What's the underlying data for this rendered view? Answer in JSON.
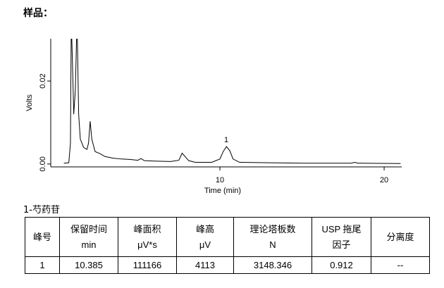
{
  "header": {
    "title": "样品："
  },
  "chart_data": {
    "type": "line",
    "x_label": "Time (min)",
    "y_label": "Volts",
    "xlim": [
      -0.3,
      21.07
    ],
    "ylim": [
      -0.0007,
      0.0302
    ],
    "xticks": [
      10,
      20
    ],
    "yticks": [
      {
        "value": 0,
        "label": "0.00"
      },
      {
        "value": 0.02,
        "label": "0.02"
      }
    ],
    "series": [
      {
        "color": "#000000",
        "x": [
          0.5,
          0.8,
          0.9,
          0.95,
          1.05,
          1.1,
          1.2,
          1.3,
          1.4,
          1.5,
          1.7,
          1.9,
          2.0,
          2.1,
          2.2,
          2.4,
          2.7,
          3.0,
          3.5,
          4.0,
          4.5,
          5.0,
          5.2,
          5.4,
          6.0,
          7.0,
          7.5,
          7.7,
          8.1,
          8.5,
          9.5,
          10.0,
          10.2,
          10.4,
          10.6,
          10.8,
          11.2,
          13,
          15,
          18,
          18.2,
          18.4,
          21
        ],
        "values": [
          0.0002,
          0.0003,
          0.005,
          0.035,
          0.02,
          0.012,
          0.018,
          0.035,
          0.012,
          0.006,
          0.004,
          0.0035,
          0.005,
          0.0103,
          0.006,
          0.003,
          0.0025,
          0.0018,
          0.0014,
          0.0012,
          0.0011,
          0.0009,
          0.0013,
          0.0008,
          0.0007,
          0.0006,
          0.0009,
          0.0026,
          0.0008,
          0.0004,
          0.0004,
          0.0012,
          0.003,
          0.0042,
          0.0032,
          0.0012,
          0.0004,
          0.0003,
          0.0002,
          0.0002,
          0.0004,
          0.0002,
          0.0001
        ]
      }
    ],
    "annotations": [
      {
        "text": "1",
        "x": 10.385,
        "y": 0.0042
      }
    ]
  },
  "table": {
    "caption": "1-芍药苷",
    "columns": [
      [
        "峰号"
      ],
      [
        "保留时间",
        "min"
      ],
      [
        "峰面积",
        "μV*s"
      ],
      [
        "峰高",
        "μV"
      ],
      [
        "理论塔板数",
        "N"
      ],
      [
        "USP 拖尾",
        "因子"
      ],
      [
        "分离度"
      ]
    ],
    "rows": [
      [
        "1",
        "10.385",
        "111166",
        "4113",
        "3148.346",
        "0.912",
        "--"
      ]
    ]
  }
}
